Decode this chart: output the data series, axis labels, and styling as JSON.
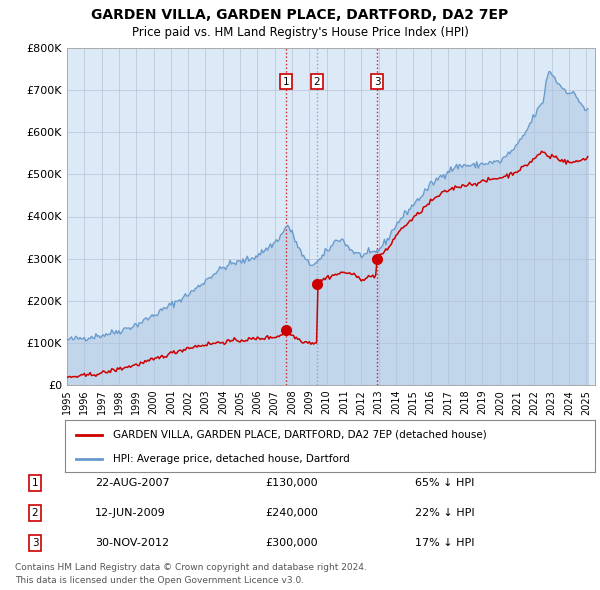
{
  "title": "GARDEN VILLA, GARDEN PLACE, DARTFORD, DA2 7EP",
  "subtitle": "Price paid vs. HM Land Registry's House Price Index (HPI)",
  "red_label": "GARDEN VILLA, GARDEN PLACE, DARTFORD, DA2 7EP (detached house)",
  "blue_label": "HPI: Average price, detached house, Dartford",
  "transactions": [
    {
      "num": 1,
      "date": "22-AUG-2007",
      "date_x": 2007.64,
      "price": 130000,
      "pct": "65%",
      "dir": "↓"
    },
    {
      "num": 2,
      "date": "12-JUN-2009",
      "date_x": 2009.44,
      "price": 240000,
      "pct": "22%",
      "dir": "↓"
    },
    {
      "num": 3,
      "date": "30-NOV-2012",
      "date_x": 2012.91,
      "price": 300000,
      "pct": "17%",
      "dir": "↓"
    }
  ],
  "footer1": "Contains HM Land Registry data © Crown copyright and database right 2024.",
  "footer2": "This data is licensed under the Open Government Licence v3.0.",
  "ylim": [
    0,
    800000
  ],
  "yticks": [
    0,
    100000,
    200000,
    300000,
    400000,
    500000,
    600000,
    700000,
    800000
  ],
  "ytick_labels": [
    "£0",
    "£100K",
    "£200K",
    "£300K",
    "£400K",
    "£500K",
    "£600K",
    "£700K",
    "£800K"
  ],
  "xlim_start": 1995.0,
  "xlim_end": 2025.5,
  "background_color": "#dce9f7",
  "red_color": "#cc0000",
  "blue_color": "#6699cc",
  "blue_fill_color": "#aac4e0",
  "grid_color": "#b0b8cc",
  "vline_color_1": "#cc0000",
  "vline_color_2": "#8899cc",
  "vline_color_3": "#cc0000"
}
